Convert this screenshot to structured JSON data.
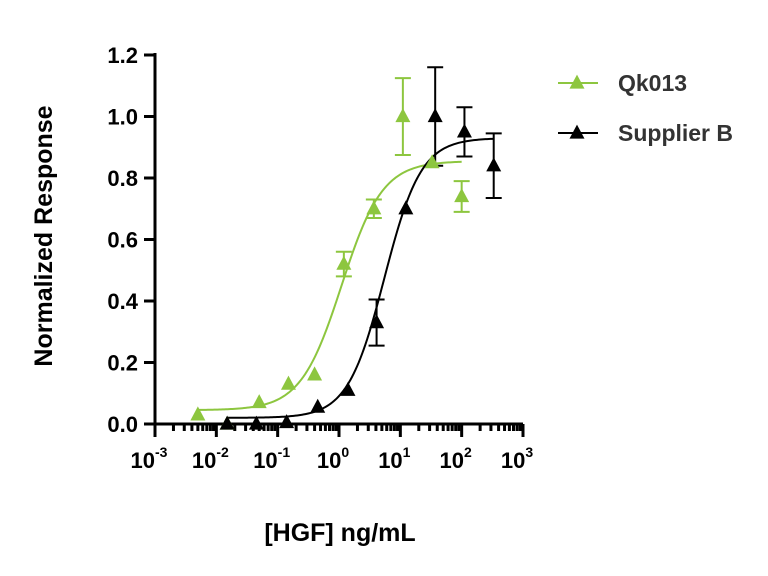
{
  "chart_data": {
    "type": "scatter",
    "title": "",
    "xlabel": "[HGF] ng/mL",
    "ylabel": "Normalized Response",
    "xscale": "log10",
    "xlim_log10": [
      -3,
      3
    ],
    "ylim": [
      0,
      1.2
    ],
    "yticks": [
      0.0,
      0.2,
      0.4,
      0.6,
      0.8,
      1.0,
      1.2
    ],
    "ytick_labels": [
      "0.0",
      "0.2",
      "0.4",
      "0.6",
      "0.8",
      "1.0",
      "1.2"
    ],
    "xtick_exponents": [
      -3,
      -2,
      -1,
      0,
      1,
      2,
      3
    ],
    "xtick_labels": [
      "10-3",
      "10-2",
      "10-1",
      "100",
      "101",
      "102",
      "103"
    ],
    "legend_position": "top-right",
    "series": [
      {
        "name": "Qk013",
        "color": "#8DC63F",
        "marker": "triangle",
        "x": [
          0.005,
          0.015,
          0.05,
          0.15,
          0.4,
          1.2,
          3.7,
          11,
          33,
          100
        ],
        "y": [
          0.03,
          0.0,
          0.07,
          0.13,
          0.16,
          0.52,
          0.7,
          1.0,
          0.85,
          0.74
        ],
        "error": [
          0.0,
          0.0,
          0.0,
          0.0,
          0.0,
          0.04,
          0.03,
          0.125,
          0.0,
          0.05
        ],
        "fit": {
          "bottom": 0.045,
          "top": 0.855,
          "ec50": 1.1,
          "hill": 1.3
        }
      },
      {
        "name": "Supplier B",
        "color": "#000000",
        "marker": "triangle",
        "x": [
          0.015,
          0.045,
          0.14,
          0.45,
          1.4,
          4.1,
          12.3,
          37,
          111,
          333
        ],
        "y": [
          0.0,
          0.0,
          0.005,
          0.055,
          0.11,
          0.33,
          0.7,
          1.0,
          0.95,
          0.84
        ],
        "error": [
          0.0,
          0.0,
          0.0,
          0.0,
          0.0,
          0.075,
          0.0,
          0.16,
          0.08,
          0.105
        ],
        "fit": {
          "bottom": 0.02,
          "top": 0.93,
          "ec50": 5.5,
          "hill": 1.45
        }
      }
    ]
  }
}
